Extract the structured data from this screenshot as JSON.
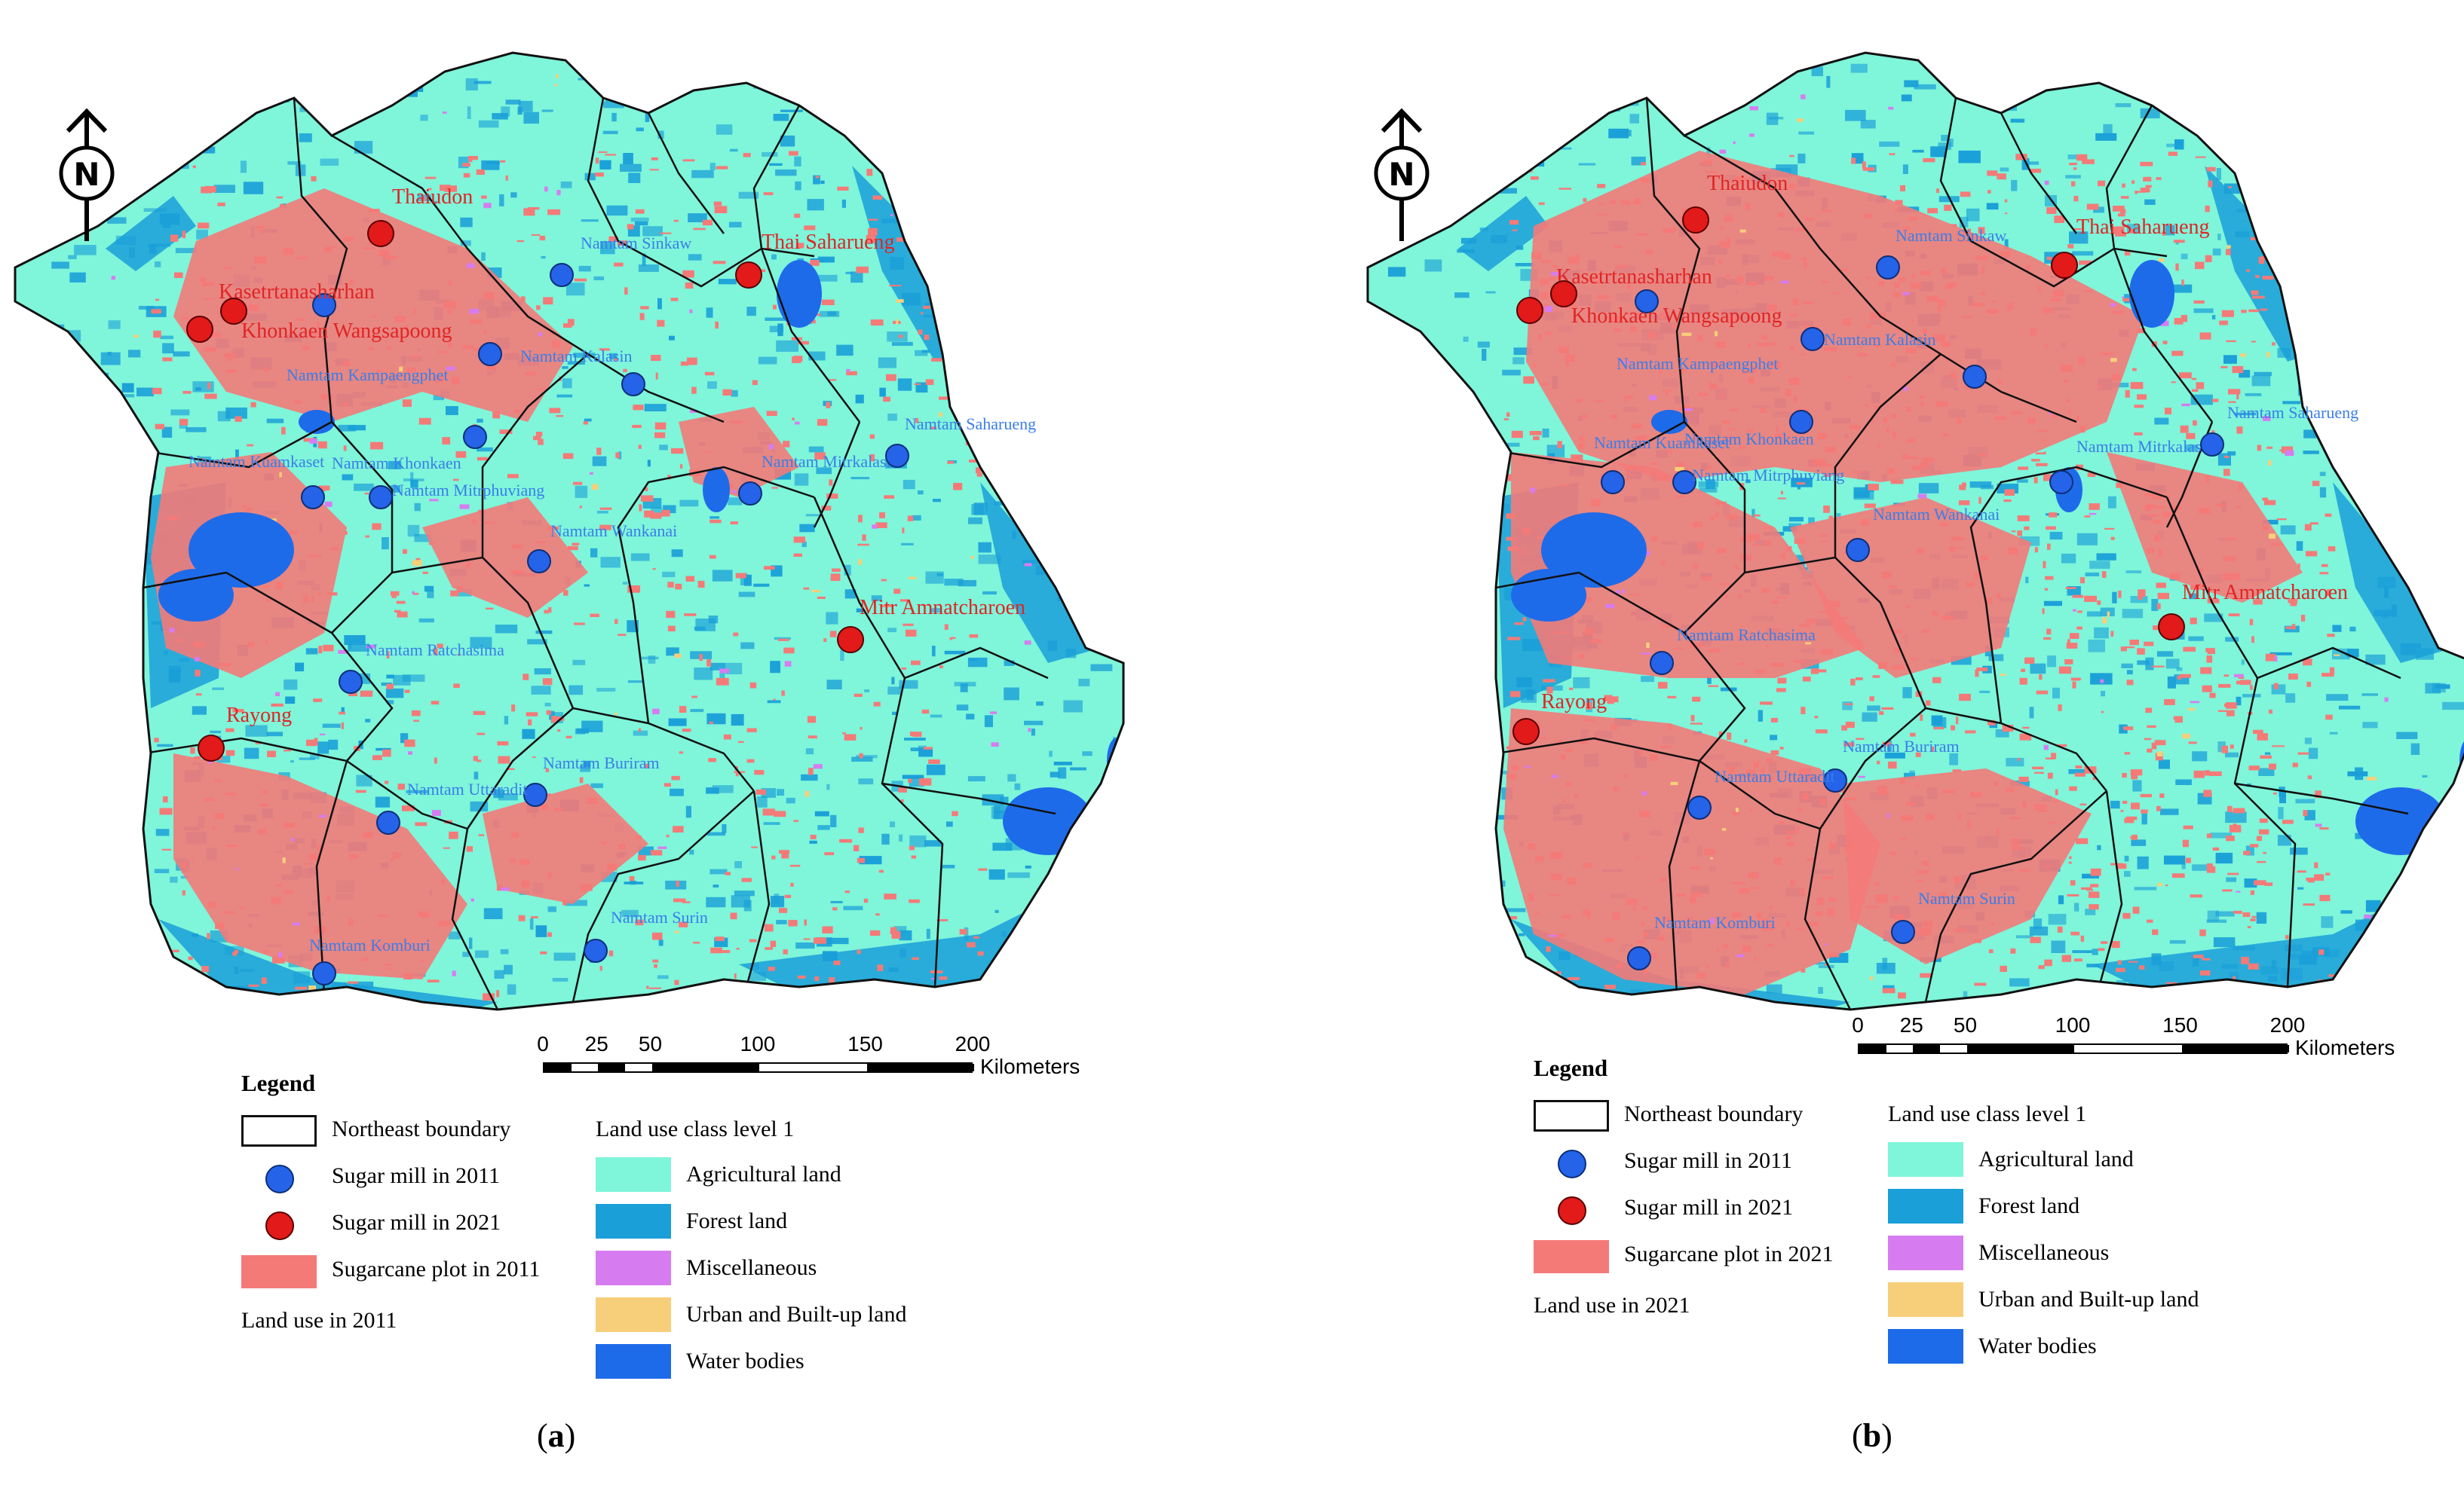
{
  "panels": [
    {
      "caption_letter": "a",
      "legend": {
        "title": "Legend",
        "boundary": "Northeast boundary",
        "mill_2011": "Sugar mill in 2011",
        "mill_2021": "Sugar mill in 2021",
        "sugarcane": "Sugarcane plot in 2011",
        "land_use_year": "Land use in 2011",
        "class_title": "Land use class level 1",
        "classes": [
          "Agricultural land",
          "Forest land",
          "Miscellaneous",
          "Urban and Built-up land",
          "Water bodies"
        ]
      },
      "scale": {
        "ticks": [
          "0",
          "25",
          "50",
          "100",
          "150",
          "200"
        ],
        "unit": "Kilometers"
      },
      "mills_2011": [
        "Namtam Sinkaw",
        "Namtam Kampaengphet",
        "Namtam Kalasin",
        "Namtam Khonkaen",
        "Namtam Kuamkaset",
        "Namtam Mitrphuviang",
        "Namtam Wankanai",
        "Namtam Mitrkalasin",
        "Namtam Saharueng",
        "Namtam Ratchasima",
        "Namtam Buriram",
        "Namtam Uttaradit",
        "Namtam Surin",
        "Namtam Komburi"
      ],
      "mills_2021": [
        "Thaiudon",
        "Thai Saharueng",
        "Kasetrtanasharhan",
        "Khonkaen Wangsapoong",
        "Mitr Amnatcharoen",
        "Rayong"
      ]
    },
    {
      "caption_letter": "b",
      "legend": {
        "title": "Legend",
        "boundary": "Northeast boundary",
        "mill_2011": "Sugar mill in 2011",
        "mill_2021": "Sugar mill in 2021",
        "sugarcane": "Sugarcane plot in 2021",
        "land_use_year": "Land use in 2021",
        "class_title": "Land use class level 1",
        "classes": [
          "Agricultural land",
          "Forest land",
          "Miscellaneous",
          "Urban and Built-up land",
          "Water bodies"
        ]
      },
      "scale": {
        "ticks": [
          "0",
          "25",
          "50",
          "100",
          "150",
          "200"
        ],
        "unit": "Kilometers"
      },
      "mills_2011": [
        "Namtam Sinkaw",
        "Namtam Kampaengphet",
        "Namtam Kalasin",
        "Namtam Khonkaen",
        "Namtam Kuamkaset",
        "Namtam Mitrphuviang",
        "Namtam Wankanai",
        "Namtam Mitrkalasin",
        "Namtam Saharueng",
        "Namtam Ratchasima",
        "Namtam Buriram",
        "Namtam Uttaradit",
        "Namtam Surin",
        "Namtam Komburi"
      ],
      "mills_2021": [
        "Thaiudon",
        "Thai Saharueng",
        "Kasetrtanasharhan",
        "Khonkaen Wangsapoong",
        "Mitr Amnatcharoen",
        "Rayong"
      ]
    }
  ],
  "colors": {
    "agricultural": "#7ff5da",
    "forest": "#1a9fd8",
    "miscellaneous": "#d77cf0",
    "urban": "#f7cf7a",
    "water": "#1e6bea",
    "sugarcane": "#f47a78",
    "mill_2011": "#2563e8",
    "mill_2021": "#e21a1a",
    "mill_2011_label": "#3a7ee8",
    "mill_2021_label": "#e02525"
  },
  "icons": [
    "north-arrow-icon"
  ]
}
